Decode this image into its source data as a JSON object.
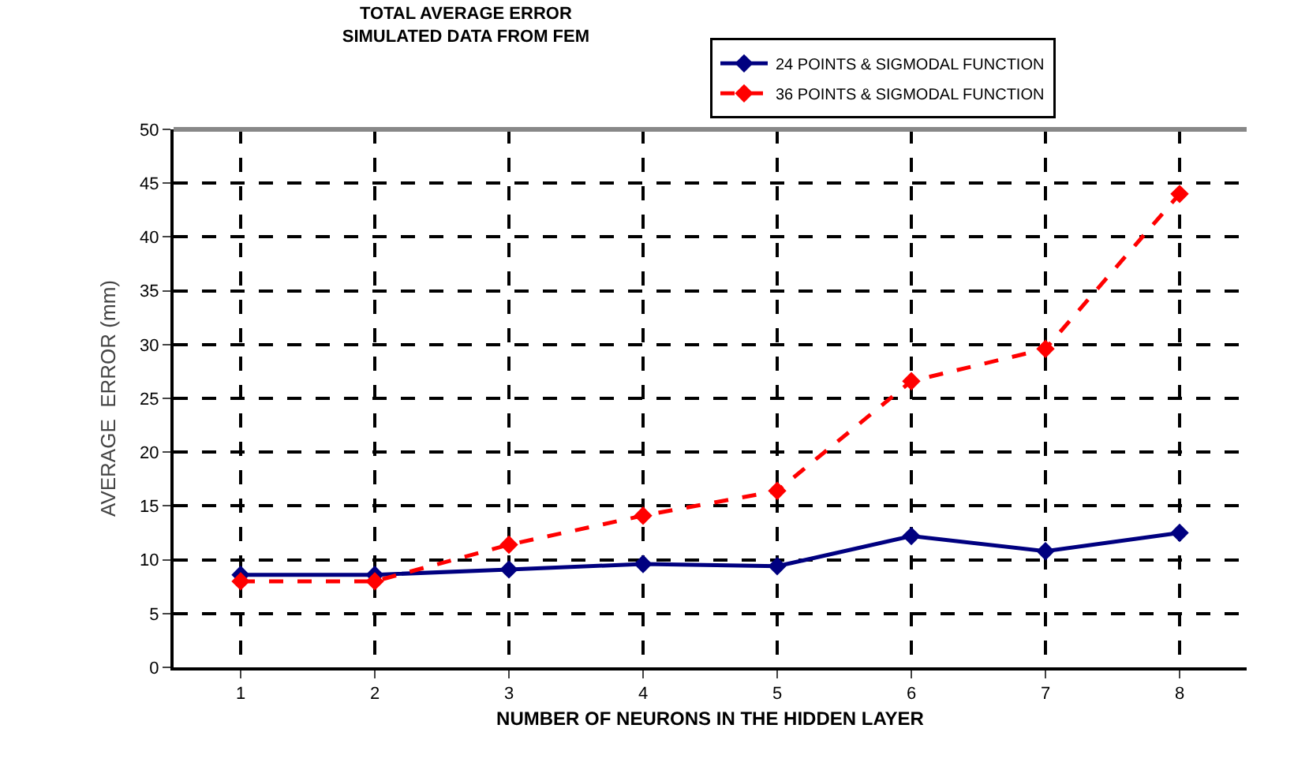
{
  "chart_data": {
    "type": "line",
    "title": "TOTAL AVERAGE ERROR",
    "subtitle": "SIMULATED DATA FROM FEM",
    "xlabel": "NUMBER OF NEURONS IN THE HIDDEN LAYER",
    "ylabel": "AVERAGE  ERROR (mm)",
    "categories": [
      "1",
      "2",
      "3",
      "4",
      "5",
      "6",
      "7",
      "8"
    ],
    "series": [
      {
        "name": "24 POINTS & SIGMODAL FUNCTION",
        "color": "#000080",
        "values": [
          8.6,
          8.6,
          9.1,
          9.6,
          9.4,
          12.2,
          10.8,
          12.5
        ],
        "line_style": "solid"
      },
      {
        "name": "36 POINTS & SIGMODAL FUNCTION",
        "color": "#ff0000",
        "values": [
          8.0,
          8.0,
          11.4,
          14.1,
          16.4,
          26.6,
          29.6,
          44.0
        ],
        "line_style": "dashed"
      }
    ],
    "ylim": [
      0,
      50
    ],
    "yticks": [
      0,
      5,
      10,
      15,
      20,
      25,
      30,
      35,
      40,
      45,
      50
    ],
    "grid": true,
    "legend": "top",
    "marker": "diamond"
  }
}
